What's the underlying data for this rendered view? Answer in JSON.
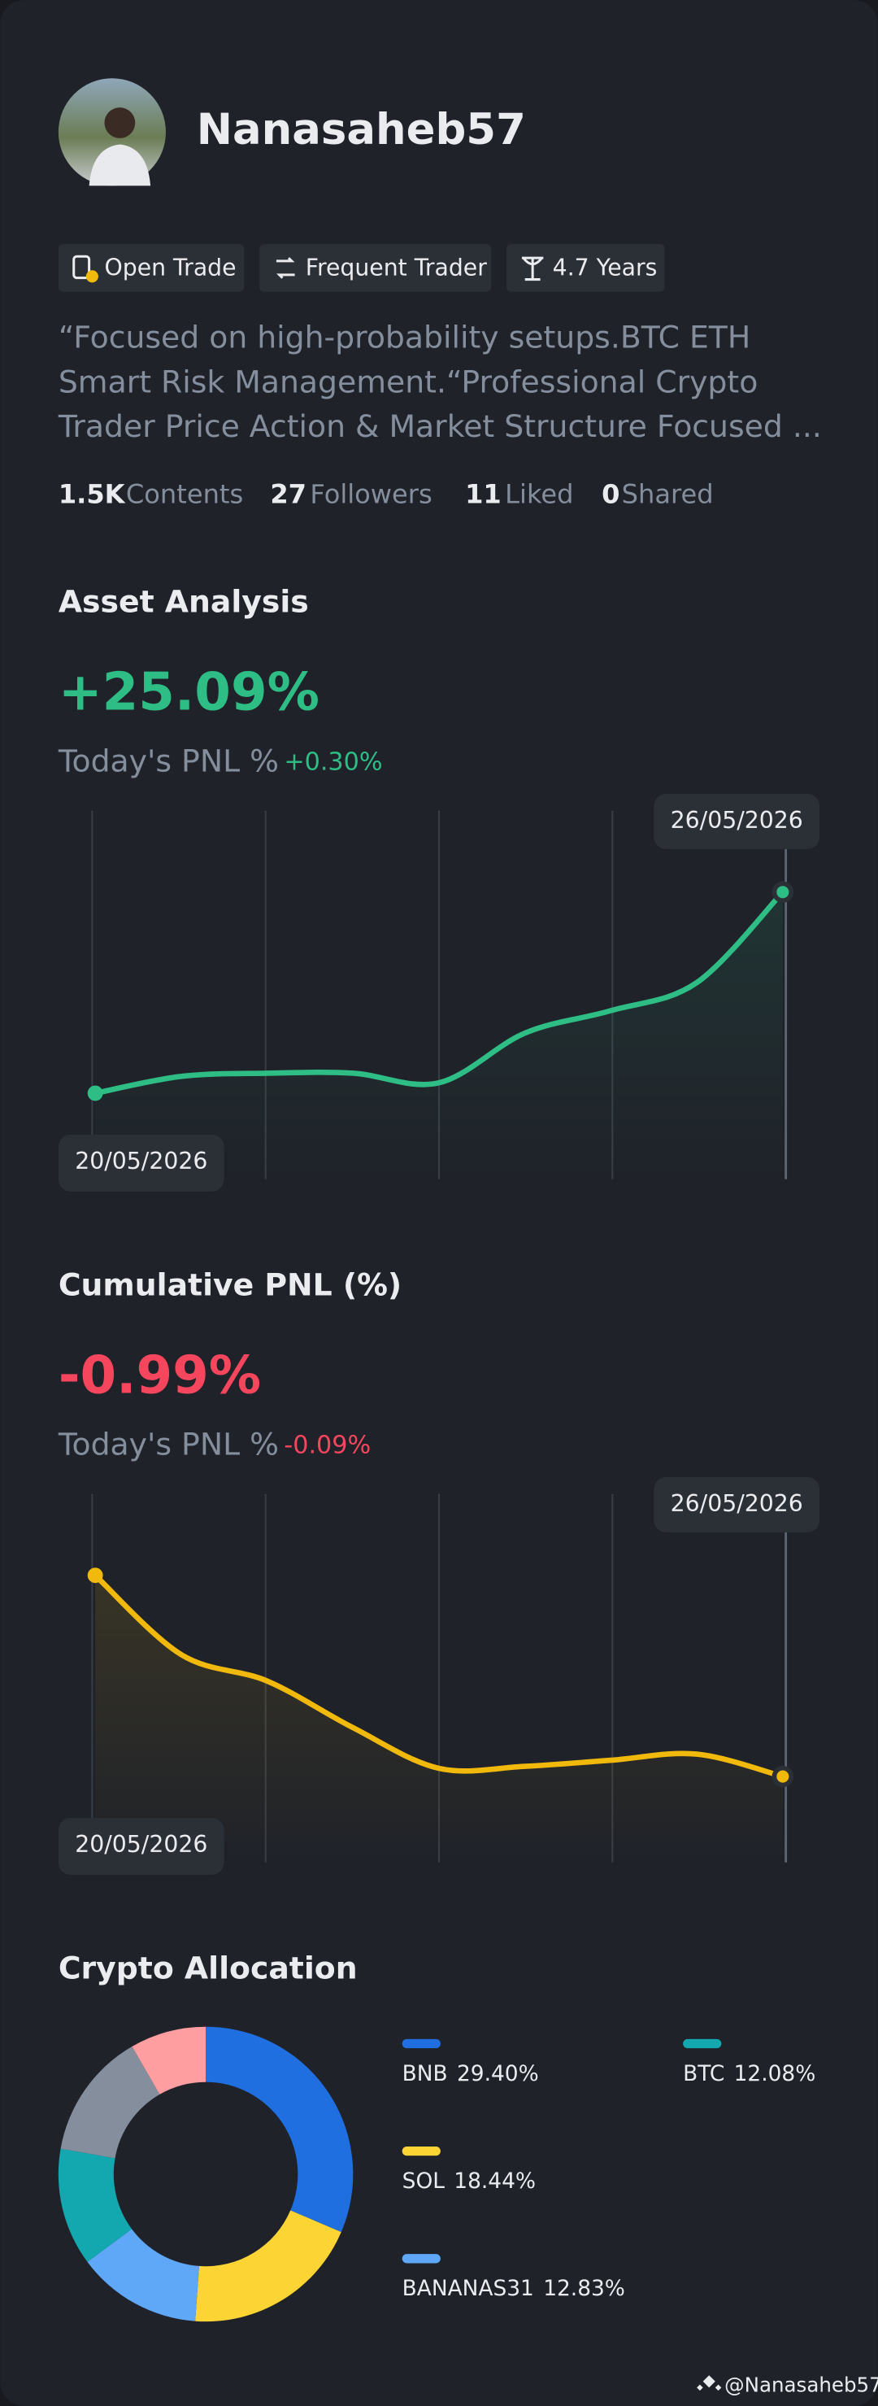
{
  "profile": {
    "name": "Nanasaheb57",
    "tags": [
      "Open Trade",
      "Frequent Trader",
      "4.7 Years"
    ],
    "bio": [
      "“Focused on high-probability setups.BTC ETH",
      "Smart Risk Management.“Professional Crypto",
      "Trader Price Action & Market Structure Focused ..."
    ],
    "stats": [
      {
        "value": "1.5K",
        "label": "Contents"
      },
      {
        "value": "27",
        "label": "Followers"
      },
      {
        "value": "11",
        "label": "Liked"
      },
      {
        "value": "0",
        "label": "Shared"
      }
    ]
  },
  "chart_data": [
    {
      "type": "line",
      "title": "Asset Analysis",
      "headline": "+25.09%",
      "pnl_label": "Today's PNL %",
      "pnl_change": "+0.30%",
      "start_date": "20/05/2026",
      "end_date": "26/05/2026",
      "color": "#2ebd85",
      "values": [
        0,
        2.1,
        2.5,
        2.5,
        1.3,
        7.5,
        10.3,
        13.8,
        25.09
      ]
    },
    {
      "type": "line",
      "title": "Cumulative PNL (%)",
      "headline": "-0.99%",
      "pnl_label": "Today's PNL %",
      "pnl_change": "-0.09%",
      "start_date": "20/05/2026",
      "end_date": "26/05/2026",
      "color": "#f0b90b",
      "values": [
        0,
        -0.39,
        -0.52,
        -0.75,
        -0.95,
        -0.94,
        -0.91,
        -0.88,
        -0.99
      ]
    },
    {
      "type": "donut",
      "title": "Crypto Allocation",
      "categories": [
        "BNB",
        "SOL",
        "BANANAS31",
        "BTC",
        null,
        null
      ],
      "values": [
        29.4,
        18.44,
        12.83,
        12.08,
        13,
        7.8
      ],
      "value_labels": [
        "29.40%",
        "18.44%",
        "12.83%",
        "12.08%",
        null,
        null
      ],
      "colors": [
        "#1f6fe0",
        "#fcd535",
        "#5ea8f7",
        "#13a8b0",
        "#848e9c",
        "#ff9ea1"
      ]
    }
  ],
  "watermark": "@Nanasaheb57"
}
